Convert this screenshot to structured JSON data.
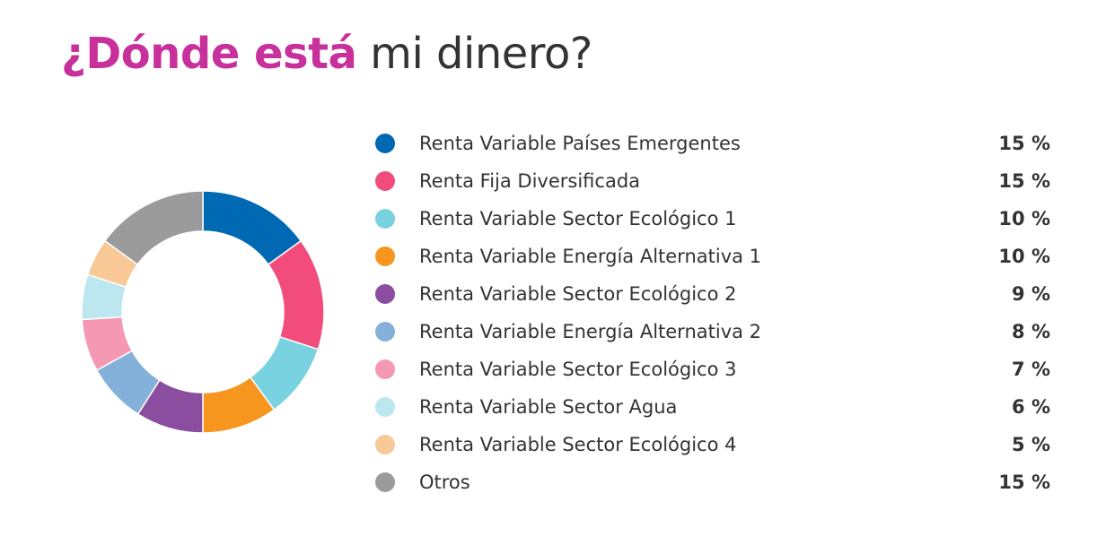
{
  "header": {
    "title_strong": "¿Dónde está",
    "title_rest": " mi dinero?"
  },
  "chart_data": {
    "type": "pie",
    "variant": "donut",
    "categories": [
      "Renta Variable Países Emergentes",
      "Renta Fija Diversificada",
      "Renta Variable Sector Ecológico 1",
      "Renta Variable Energía Alternativa 1",
      "Renta Variable Sector Ecológico 2",
      "Renta Variable Energía Alternativa 2",
      "Renta Variable Sector Ecológico 3",
      "Renta Variable Sector Agua",
      "Renta Variable Sector Ecológico 4",
      "Otros"
    ],
    "values": [
      15,
      15,
      10,
      10,
      9,
      8,
      7,
      6,
      5,
      15
    ],
    "value_labels": [
      "15 %",
      "15 %",
      "10 %",
      "10 %",
      "9 %",
      "8 %",
      "7 %",
      "6 %",
      "5 %",
      "15 %"
    ],
    "colors": [
      "#0069b4",
      "#f14c7c",
      "#79d2e0",
      "#f6961f",
      "#8a4d9f",
      "#84b1d9",
      "#f598b3",
      "#bde7ef",
      "#f8c996",
      "#9b9b9b"
    ],
    "legend_position": "right"
  }
}
